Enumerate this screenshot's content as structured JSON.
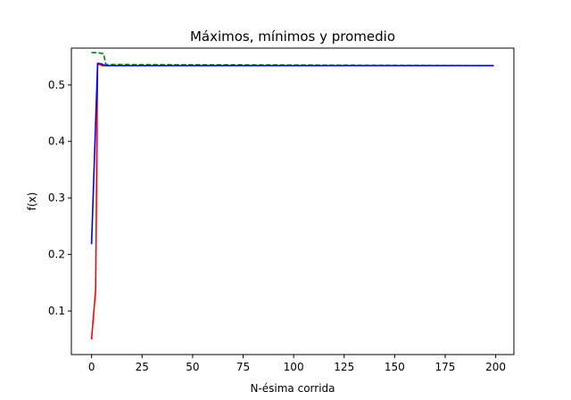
{
  "chart_data": {
    "type": "line",
    "title": "Máximos, mínimos y promedio",
    "xlabel": "N-ésima corrida",
    "ylabel": "f(x)",
    "xlim": [
      -10,
      209
    ],
    "ylim": [
      0.023,
      0.565
    ],
    "xticks": [
      0,
      25,
      50,
      75,
      100,
      125,
      150,
      175,
      200
    ],
    "yticks": [
      0.1,
      0.2,
      0.3,
      0.4,
      0.5
    ],
    "xtick_labels": [
      "0",
      "25",
      "50",
      "75",
      "100",
      "125",
      "150",
      "175",
      "200"
    ],
    "ytick_labels": [
      "0.1",
      "0.2",
      "0.3",
      "0.4",
      "0.5"
    ],
    "grid": false,
    "legend": "none",
    "series": [
      {
        "color": "#ff0000",
        "style": "solid",
        "x": [
          0,
          2,
          3,
          4,
          5,
          7,
          199
        ],
        "y": [
          0.05,
          0.138,
          0.535,
          0.537,
          0.534,
          0.534,
          0.534
        ]
      },
      {
        "color": "#008000",
        "style": "dashed",
        "x": [
          0,
          3,
          6,
          7,
          199
        ],
        "y": [
          0.557,
          0.557,
          0.555,
          0.536,
          0.534
        ]
      },
      {
        "color": "#0000ff",
        "style": "solid",
        "x": [
          0,
          3,
          5,
          6,
          7,
          199
        ],
        "y": [
          0.218,
          0.538,
          0.537,
          0.535,
          0.534,
          0.534
        ]
      }
    ]
  }
}
